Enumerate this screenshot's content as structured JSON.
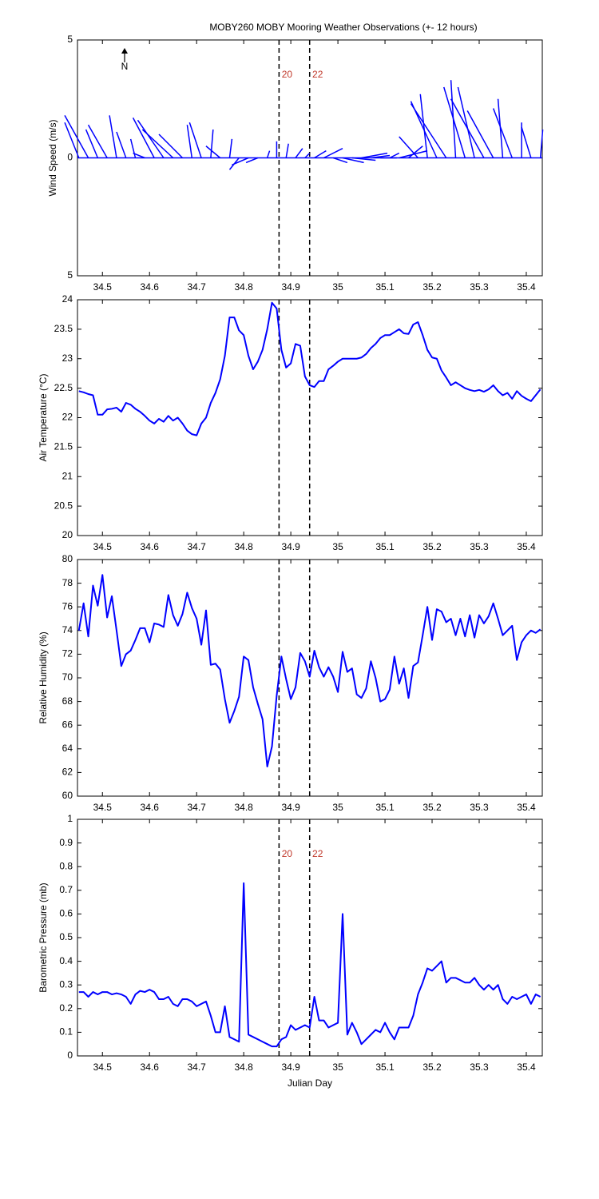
{
  "chart_data": [
    {
      "type": "stick",
      "title": "MOBY260 MOBY Mooring Weather Observations (+- 12 hours)",
      "ylabel": "Wind Speed (m/s)",
      "annotation": "N",
      "color": "#0000ff",
      "xlim": [
        34.447,
        35.434
      ],
      "xticks": [
        34.5,
        34.6,
        34.7,
        34.8,
        34.9,
        35,
        35.1,
        35.2,
        35.3,
        35.4
      ],
      "ylim": [
        -5,
        5
      ],
      "yticks": [
        {
          "value": -5,
          "label": "5"
        },
        0,
        5
      ],
      "vlines": [
        {
          "value": 34.875,
          "label": "20"
        },
        {
          "value": 34.94,
          "label": "22"
        }
      ],
      "x": [
        34.45,
        34.47,
        34.49,
        34.51,
        34.53,
        34.55,
        34.57,
        34.59,
        34.61,
        34.63,
        34.65,
        34.67,
        34.69,
        34.71,
        34.73,
        34.75,
        34.77,
        34.79,
        34.81,
        34.83,
        34.85,
        34.87,
        34.89,
        34.91,
        34.93,
        34.95,
        34.97,
        34.99,
        35.01,
        35.03,
        35.05,
        35.07,
        35.09,
        35.11,
        35.13,
        35.15,
        35.17,
        35.19,
        35.21,
        35.23,
        35.25,
        35.27,
        35.29,
        35.31,
        35.33,
        35.35,
        35.37,
        35.39,
        35.41,
        35.43
      ],
      "u": [
        -0.6,
        -1.0,
        -0.5,
        -0.8,
        -0.3,
        -0.4,
        -0.2,
        -0.5,
        -0.9,
        -1.1,
        -1.3,
        -1.0,
        -0.2,
        -0.5,
        0.1,
        -0.6,
        0.1,
        -0.4,
        -0.7,
        -0.5,
        0.1,
        0.0,
        0.1,
        0.3,
        0.2,
        0.5,
        0.8,
        0.6,
        0.9,
        1.0,
        1.1,
        0.8,
        0.7,
        0.4,
        1.2,
        0.6,
        -0.8,
        -0.3,
        -1.1,
        -1.5,
        -0.2,
        -0.9,
        -0.7,
        -1.4,
        -1.1,
        -0.2,
        -0.8,
        0.0,
        -0.4,
        0.1
      ],
      "v": [
        1.5,
        1.8,
        1.2,
        1.4,
        1.8,
        1.1,
        0.8,
        0.2,
        1.7,
        1.6,
        1.2,
        1.0,
        1.4,
        1.5,
        1.2,
        0.5,
        0.8,
        -0.5,
        -0.3,
        -0.2,
        0.3,
        0.7,
        0.6,
        0.4,
        0.2,
        0.3,
        0.4,
        -0.2,
        -0.2,
        -0.1,
        0.2,
        0.1,
        0.0,
        0.2,
        0.3,
        0.5,
        0.9,
        2.7,
        2.4,
        2.3,
        3.3,
        3.0,
        3.0,
        2.5,
        2.0,
        2.5,
        2.1,
        1.5,
        1.3,
        1.2
      ]
    },
    {
      "type": "line",
      "ylabel": "Air Temperature (°C)",
      "color": "#0000ff",
      "xlim": [
        34.447,
        35.434
      ],
      "xticks": [
        34.5,
        34.6,
        34.7,
        34.8,
        34.9,
        35,
        35.1,
        35.2,
        35.3,
        35.4
      ],
      "ylim": [
        20,
        24
      ],
      "yticks": [
        20,
        20.5,
        21,
        21.5,
        22,
        22.5,
        23,
        23.5,
        24
      ],
      "vlines": [
        34.875,
        34.94
      ],
      "x": [
        34.45,
        34.46,
        34.47,
        34.48,
        34.49,
        34.5,
        34.51,
        34.52,
        34.53,
        34.54,
        34.55,
        34.56,
        34.57,
        34.58,
        34.59,
        34.6,
        34.61,
        34.62,
        34.63,
        34.64,
        34.65,
        34.66,
        34.67,
        34.68,
        34.69,
        34.7,
        34.71,
        34.72,
        34.73,
        34.74,
        34.75,
        34.76,
        34.77,
        34.78,
        34.79,
        34.8,
        34.81,
        34.82,
        34.83,
        34.84,
        34.85,
        34.86,
        34.87,
        34.88,
        34.89,
        34.9,
        34.91,
        34.92,
        34.93,
        34.94,
        34.95,
        34.96,
        34.97,
        34.98,
        34.99,
        35,
        35.01,
        35.02,
        35.03,
        35.04,
        35.05,
        35.06,
        35.07,
        35.08,
        35.09,
        35.1,
        35.11,
        35.12,
        35.13,
        35.14,
        35.15,
        35.16,
        35.17,
        35.18,
        35.19,
        35.2,
        35.21,
        35.22,
        35.23,
        35.24,
        35.25,
        35.26,
        35.27,
        35.28,
        35.29,
        35.3,
        35.31,
        35.32,
        35.33,
        35.34,
        35.35,
        35.36,
        35.37,
        35.38,
        35.39,
        35.4,
        35.41,
        35.42,
        35.43
      ],
      "values": [
        22.45,
        22.43,
        22.4,
        22.38,
        22.05,
        22.05,
        22.14,
        22.15,
        22.17,
        22.1,
        22.25,
        22.22,
        22.15,
        22.1,
        22.03,
        21.95,
        21.9,
        21.98,
        21.93,
        22.03,
        21.95,
        22.0,
        21.9,
        21.78,
        21.72,
        21.7,
        21.9,
        22.0,
        22.25,
        22.42,
        22.65,
        23.05,
        23.7,
        23.7,
        23.48,
        23.4,
        23.05,
        22.82,
        22.95,
        23.15,
        23.5,
        23.95,
        23.85,
        23.15,
        22.85,
        22.92,
        23.25,
        23.22,
        22.7,
        22.55,
        22.52,
        22.62,
        22.62,
        22.82,
        22.88,
        22.95,
        23.0,
        23.0,
        23.0,
        23.0,
        23.02,
        23.08,
        23.18,
        23.25,
        23.35,
        23.4,
        23.4,
        23.45,
        23.5,
        23.43,
        23.42,
        23.58,
        23.62,
        23.4,
        23.15,
        23.02,
        23.0,
        22.8,
        22.68,
        22.55,
        22.6,
        22.55,
        22.5,
        22.47,
        22.45,
        22.47,
        22.44,
        22.48,
        22.55,
        22.45,
        22.38,
        22.42,
        22.32,
        22.45,
        22.37,
        22.32,
        22.28,
        22.38,
        22.48
      ]
    },
    {
      "type": "line",
      "ylabel": "Relative Humidity (%)",
      "color": "#0000ff",
      "xlim": [
        34.447,
        35.434
      ],
      "xticks": [
        34.5,
        34.6,
        34.7,
        34.8,
        34.9,
        35,
        35.1,
        35.2,
        35.3,
        35.4
      ],
      "ylim": [
        60,
        80
      ],
      "yticks": [
        60,
        62,
        64,
        66,
        68,
        70,
        72,
        74,
        76,
        78,
        80
      ],
      "vlines": [
        34.875,
        34.94
      ],
      "x": [
        34.45,
        34.46,
        34.47,
        34.48,
        34.49,
        34.5,
        34.51,
        34.52,
        34.53,
        34.54,
        34.55,
        34.56,
        34.57,
        34.58,
        34.59,
        34.6,
        34.61,
        34.62,
        34.63,
        34.64,
        34.65,
        34.66,
        34.67,
        34.68,
        34.69,
        34.7,
        34.71,
        34.72,
        34.73,
        34.74,
        34.75,
        34.76,
        34.77,
        34.78,
        34.79,
        34.8,
        34.81,
        34.82,
        34.83,
        34.84,
        34.85,
        34.86,
        34.87,
        34.88,
        34.89,
        34.9,
        34.91,
        34.92,
        34.93,
        34.94,
        34.95,
        34.96,
        34.97,
        34.98,
        34.99,
        35,
        35.01,
        35.02,
        35.03,
        35.04,
        35.05,
        35.06,
        35.07,
        35.08,
        35.09,
        35.1,
        35.11,
        35.12,
        35.13,
        35.14,
        35.15,
        35.16,
        35.17,
        35.18,
        35.19,
        35.2,
        35.21,
        35.22,
        35.23,
        35.24,
        35.25,
        35.26,
        35.27,
        35.28,
        35.29,
        35.3,
        35.31,
        35.32,
        35.33,
        35.34,
        35.35,
        35.36,
        35.37,
        35.38,
        35.39,
        35.4,
        35.41,
        35.42,
        35.43
      ],
      "values": [
        74.0,
        76.3,
        73.5,
        77.8,
        76.1,
        78.7,
        75.1,
        76.9,
        74,
        71,
        72.0,
        72.3,
        73.2,
        74.2,
        74.2,
        73,
        74.6,
        74.5,
        74.3,
        77,
        75.3,
        74.4,
        75.4,
        77.2,
        75.9,
        75,
        72.8,
        75.7,
        71.1,
        71.2,
        70.7,
        68.2,
        66.2,
        67.2,
        68.4,
        71.8,
        71.5,
        69.2,
        67.8,
        66.5,
        62.5,
        64.2,
        68.5,
        71.8,
        69.9,
        68.2,
        69.2,
        72.1,
        71.4,
        70.1,
        72.3,
        70.9,
        70.1,
        70.9,
        70.1,
        68.8,
        72.2,
        70.5,
        70.8,
        68.6,
        68.3,
        69.1,
        71.4,
        70,
        68,
        68.2,
        69.0,
        71.8,
        69.5,
        70.8,
        68.3,
        71,
        71.3,
        73.6,
        76,
        73.2,
        75.8,
        75.6,
        74.7,
        75,
        73.6,
        75,
        73.5,
        75.3,
        73.4,
        75.3,
        74.6,
        75.2,
        76.3,
        75.0,
        73.6,
        74,
        74.4,
        71.5,
        73,
        73.6,
        74,
        73.8,
        74.1
      ]
    },
    {
      "type": "line",
      "ylabel": "Barometric Pressure (mb)",
      "xlabel": "Julian Day",
      "color": "#0000ff",
      "xlim": [
        34.447,
        35.434
      ],
      "xticks": [
        34.5,
        34.6,
        34.7,
        34.8,
        34.9,
        35,
        35.1,
        35.2,
        35.3,
        35.4
      ],
      "ylim": [
        0,
        1
      ],
      "yticks": [
        0,
        0.1,
        0.2,
        0.3,
        0.4,
        0.5,
        0.6,
        0.7,
        0.8,
        0.9,
        1
      ],
      "vlines": [
        {
          "value": 34.875,
          "label": "20"
        },
        {
          "value": 34.94,
          "label": "22"
        }
      ],
      "x": [
        34.45,
        34.46,
        34.47,
        34.48,
        34.49,
        34.5,
        34.51,
        34.52,
        34.53,
        34.54,
        34.55,
        34.56,
        34.57,
        34.58,
        34.59,
        34.6,
        34.61,
        34.62,
        34.63,
        34.64,
        34.65,
        34.66,
        34.67,
        34.68,
        34.69,
        34.7,
        34.71,
        34.72,
        34.73,
        34.74,
        34.75,
        34.76,
        34.77,
        34.78,
        34.79,
        34.8,
        34.81,
        34.82,
        34.83,
        34.84,
        34.85,
        34.86,
        34.87,
        34.88,
        34.89,
        34.9,
        34.91,
        34.92,
        34.93,
        34.94,
        34.95,
        34.96,
        34.97,
        34.98,
        34.99,
        35,
        35.01,
        35.02,
        35.03,
        35.04,
        35.05,
        35.06,
        35.07,
        35.08,
        35.09,
        35.1,
        35.11,
        35.12,
        35.13,
        35.14,
        35.15,
        35.16,
        35.17,
        35.18,
        35.19,
        35.2,
        35.21,
        35.22,
        35.23,
        35.24,
        35.25,
        35.26,
        35.27,
        35.28,
        35.29,
        35.3,
        35.31,
        35.32,
        35.33,
        35.34,
        35.35,
        35.36,
        35.37,
        35.38,
        35.39,
        35.4,
        35.41,
        35.42,
        35.43
      ],
      "values": [
        0.27,
        0.27,
        0.25,
        0.27,
        0.26,
        0.27,
        0.27,
        0.26,
        0.265,
        0.26,
        0.25,
        0.22,
        0.26,
        0.275,
        0.27,
        0.28,
        0.27,
        0.24,
        0.24,
        0.25,
        0.22,
        0.21,
        0.24,
        0.24,
        0.23,
        0.21,
        0.22,
        0.23,
        0.17,
        0.1,
        0.1,
        0.21,
        0.08,
        0.07,
        0.06,
        0.73,
        0.09,
        0.08,
        0.07,
        0.06,
        0.05,
        0.04,
        0.04,
        0.07,
        0.08,
        0.13,
        0.11,
        0.12,
        0.13,
        0.12,
        0.25,
        0.15,
        0.15,
        0.12,
        0.13,
        0.14,
        0.6,
        0.09,
        0.14,
        0.1,
        0.05,
        0.07,
        0.09,
        0.11,
        0.1,
        0.14,
        0.1,
        0.07,
        0.12,
        0.12,
        0.12,
        0.17,
        0.26,
        0.31,
        0.37,
        0.36,
        0.38,
        0.4,
        0.31,
        0.33,
        0.33,
        0.32,
        0.31,
        0.31,
        0.33,
        0.3,
        0.28,
        0.3,
        0.28,
        0.3,
        0.24,
        0.22,
        0.25,
        0.24,
        0.25,
        0.26,
        0.22,
        0.26,
        0.25
      ]
    }
  ]
}
